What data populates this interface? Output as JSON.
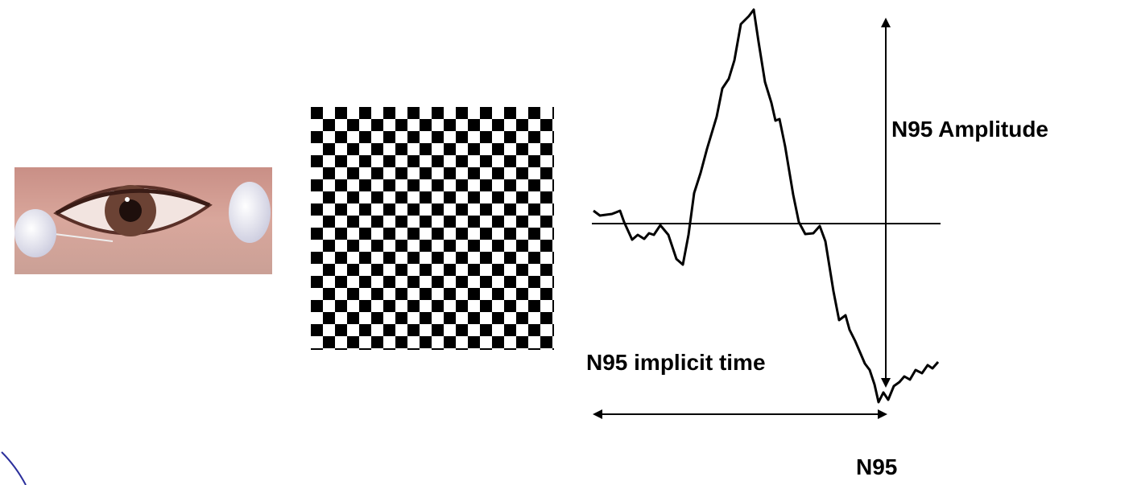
{
  "labels": {
    "amplitude": "N95 Amplitude",
    "implicit_time": "N95 implicit time",
    "peak": "N95"
  }
}
